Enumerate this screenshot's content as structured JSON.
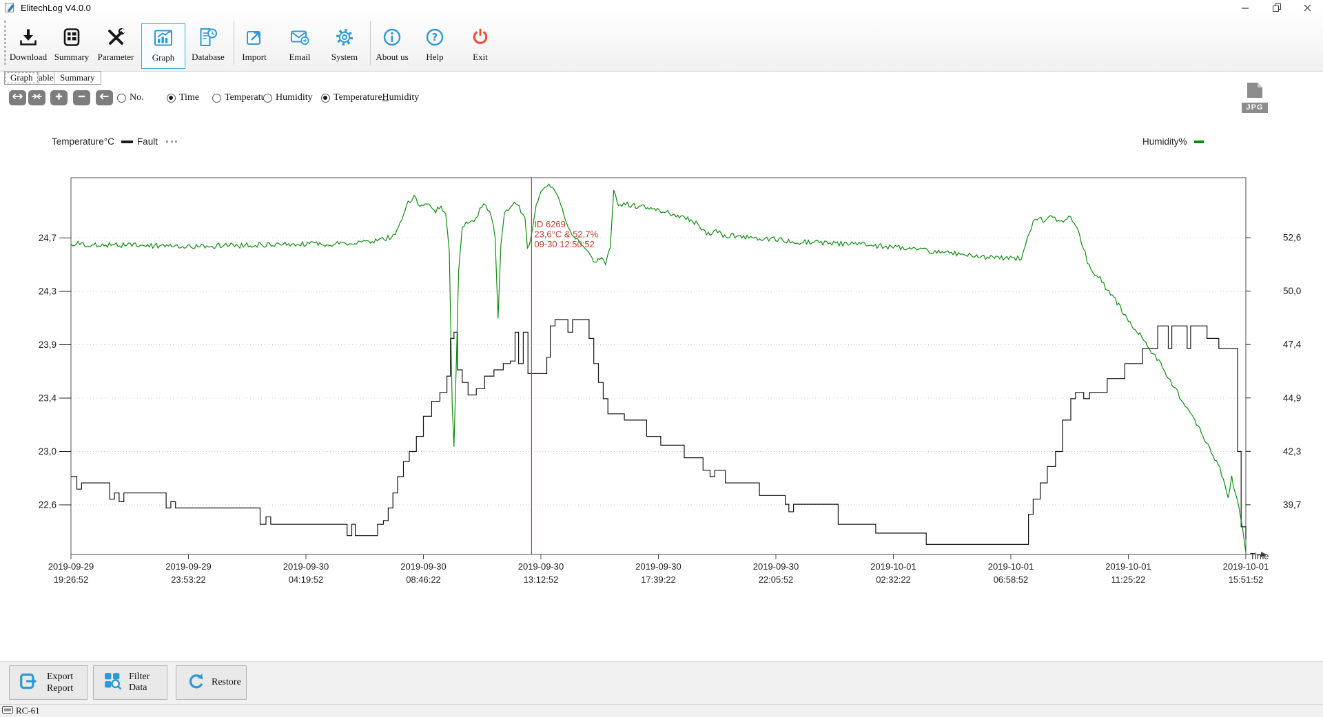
{
  "window": {
    "title": "ElitechLog V4.0.0"
  },
  "toolbar": {
    "items": [
      "Download",
      "Summary",
      "Parameter",
      "Graph",
      "Database",
      "Import",
      "Email",
      "System",
      "About us",
      "Help",
      "Exit"
    ],
    "active_item": "Graph"
  },
  "tabs": [
    {
      "label": "Graph",
      "active": true
    },
    {
      "label": "Table",
      "active": false
    },
    {
      "label": "Summary",
      "active": false
    }
  ],
  "graph_controls": {
    "zoom_buttons": [
      "expand-horizontal",
      "compress-horizontal",
      "zoom-in",
      "zoom-out",
      "pan-left"
    ],
    "radios": [
      {
        "label": "No.",
        "checked": false
      },
      {
        "label": "Time",
        "checked": true
      },
      {
        "label": "Temperatur",
        "checked": false
      },
      {
        "label": "Humidity",
        "checked": false
      },
      {
        "label_pre": "Temperature",
        "label_accel": "H",
        "label_post": "umidity",
        "checked": true
      }
    ],
    "export_jpg_label": "JPG"
  },
  "legend": {
    "left_axis_title": "Temperature°C",
    "fault_label": "Fault",
    "right_axis_title": "Humidity%"
  },
  "cursor": {
    "x_percent": 39.2,
    "lines": [
      "ID 6269",
      "23,6°C & 52,7%",
      "09-30 12:50:52"
    ],
    "color": "#c0392b"
  },
  "footer": {
    "buttons": [
      "Export Report",
      "Filter Data",
      "Restore"
    ]
  },
  "statusbar": {
    "device": "RC-61"
  },
  "chart_data": {
    "type": "line",
    "title": "",
    "grid": "horizontal-dotted",
    "x_axis": {
      "label": "Time",
      "tick_labels": [
        [
          "2019-09-29",
          "19:26:52"
        ],
        [
          "2019-09-29",
          "23:53:22"
        ],
        [
          "2019-09-30",
          "04:19:52"
        ],
        [
          "2019-09-30",
          "08:46:22"
        ],
        [
          "2019-09-30",
          "13:12:52"
        ],
        [
          "2019-09-30",
          "17:39:22"
        ],
        [
          "2019-09-30",
          "22:05:52"
        ],
        [
          "2019-10-01",
          "02:32:22"
        ],
        [
          "2019-10-01",
          "06:58:52"
        ],
        [
          "2019-10-01",
          "11:25:22"
        ],
        [
          "2019-10-01",
          "15:51:52"
        ]
      ]
    },
    "y_left": {
      "title": "Temperature°C",
      "min": 22.18,
      "max": 25.18,
      "ticks": [
        {
          "v": 24.7,
          "t": "24,7"
        },
        {
          "v": 24.275,
          "t": "24,3"
        },
        {
          "v": 23.85,
          "t": "23,9"
        },
        {
          "v": 23.425,
          "t": "23,4"
        },
        {
          "v": 23.0,
          "t": "23,0"
        },
        {
          "v": 22.575,
          "t": "22,6"
        }
      ]
    },
    "y_right": {
      "title": "Humidity%",
      "min": 37.3,
      "max": 55.5,
      "ticks": [
        {
          "v": 52.6,
          "t": "52,6"
        },
        {
          "v": 50.02,
          "t": "50,0"
        },
        {
          "v": 47.44,
          "t": "47,4"
        },
        {
          "v": 44.86,
          "t": "44,9"
        },
        {
          "v": 42.28,
          "t": "42,3"
        },
        {
          "v": 39.7,
          "t": "39,7"
        }
      ]
    },
    "series": [
      {
        "name": "Temperature",
        "axis": "left",
        "style": "step",
        "color": "#141414",
        "points": [
          [
            0,
            22.8
          ],
          [
            0.5,
            22.7
          ],
          [
            0.9,
            22.75
          ],
          [
            3.1,
            22.75
          ],
          [
            3.3,
            22.62
          ],
          [
            3.7,
            22.67
          ],
          [
            4.1,
            22.6
          ],
          [
            4.5,
            22.67
          ],
          [
            7.9,
            22.67
          ],
          [
            8.1,
            22.55
          ],
          [
            8.5,
            22.6
          ],
          [
            8.9,
            22.55
          ],
          [
            15.8,
            22.55
          ],
          [
            16.1,
            22.42
          ],
          [
            16.6,
            22.48
          ],
          [
            17.0,
            22.42
          ],
          [
            23.2,
            22.42
          ],
          [
            23.5,
            22.33
          ],
          [
            23.9,
            22.42
          ],
          [
            24.2,
            22.33
          ],
          [
            25.8,
            22.33
          ],
          [
            26.1,
            22.42
          ],
          [
            26.6,
            22.45
          ],
          [
            27.0,
            22.55
          ],
          [
            27.4,
            22.67
          ],
          [
            27.8,
            22.8
          ],
          [
            28.3,
            22.92
          ],
          [
            28.8,
            23.0
          ],
          [
            29.4,
            23.12
          ],
          [
            30.0,
            23.28
          ],
          [
            30.7,
            23.4
          ],
          [
            31.4,
            23.47
          ],
          [
            32.0,
            23.6
          ],
          [
            32.3,
            23.9
          ],
          [
            32.6,
            23.95
          ],
          [
            32.9,
            23.65
          ],
          [
            33.3,
            23.55
          ],
          [
            33.8,
            23.45
          ],
          [
            34.5,
            23.5
          ],
          [
            35.2,
            23.6
          ],
          [
            36.0,
            23.65
          ],
          [
            36.8,
            23.7
          ],
          [
            37.4,
            23.72
          ],
          [
            37.8,
            23.95
          ],
          [
            38.1,
            23.7
          ],
          [
            38.5,
            23.95
          ],
          [
            38.9,
            23.62
          ],
          [
            40.1,
            23.62
          ],
          [
            40.5,
            23.75
          ],
          [
            40.8,
            24.0
          ],
          [
            41.2,
            24.05
          ],
          [
            42.3,
            23.95
          ],
          [
            42.7,
            24.05
          ],
          [
            43.8,
            24.05
          ],
          [
            44.1,
            23.9
          ],
          [
            44.5,
            23.7
          ],
          [
            44.9,
            23.55
          ],
          [
            45.3,
            23.42
          ],
          [
            45.7,
            23.3
          ],
          [
            46.9,
            23.3
          ],
          [
            47.1,
            23.25
          ],
          [
            48.2,
            23.25
          ],
          [
            49.0,
            23.12
          ],
          [
            50.2,
            23.05
          ],
          [
            52.2,
            22.95
          ],
          [
            53.8,
            22.85
          ],
          [
            54.4,
            22.8
          ],
          [
            54.8,
            22.85
          ],
          [
            55.7,
            22.75
          ],
          [
            58.6,
            22.65
          ],
          [
            60.8,
            22.58
          ],
          [
            61.1,
            22.52
          ],
          [
            61.5,
            22.58
          ],
          [
            65.0,
            22.58
          ],
          [
            65.3,
            22.42
          ],
          [
            68.2,
            22.42
          ],
          [
            68.5,
            22.35
          ],
          [
            72.5,
            22.35
          ],
          [
            72.8,
            22.26
          ],
          [
            81.2,
            22.26
          ],
          [
            81.5,
            22.5
          ],
          [
            81.9,
            22.62
          ],
          [
            82.5,
            22.75
          ],
          [
            83.1,
            22.88
          ],
          [
            83.8,
            23.0
          ],
          [
            84.4,
            23.25
          ],
          [
            85.1,
            23.42
          ],
          [
            85.5,
            23.47
          ],
          [
            86.2,
            23.42
          ],
          [
            86.7,
            23.47
          ],
          [
            87.8,
            23.47
          ],
          [
            88.2,
            23.58
          ],
          [
            89.4,
            23.58
          ],
          [
            89.7,
            23.7
          ],
          [
            90.9,
            23.7
          ],
          [
            91.2,
            23.82
          ],
          [
            92.2,
            23.82
          ],
          [
            92.5,
            24.0
          ],
          [
            93.2,
            24.0
          ],
          [
            93.4,
            23.82
          ],
          [
            93.7,
            24.0
          ],
          [
            94.7,
            24.0
          ],
          [
            95.0,
            23.82
          ],
          [
            95.3,
            24.0
          ],
          [
            96.4,
            24.0
          ],
          [
            96.7,
            23.9
          ],
          [
            97.4,
            23.9
          ],
          [
            97.7,
            23.82
          ],
          [
            99.1,
            23.82
          ],
          [
            99.3,
            23.0
          ],
          [
            99.6,
            22.4
          ],
          [
            100,
            22.3
          ]
        ]
      },
      {
        "name": "Humidity",
        "axis": "right",
        "style": "line",
        "noise": 0.13,
        "color": "#0e8c0e",
        "points": [
          [
            0,
            52.3
          ],
          [
            4,
            52.25
          ],
          [
            8,
            52.2
          ],
          [
            12,
            52.2
          ],
          [
            16,
            52.25
          ],
          [
            20,
            52.3
          ],
          [
            24,
            52.3
          ],
          [
            25.5,
            52.4
          ],
          [
            26.5,
            52.5
          ],
          [
            27.6,
            52.7
          ],
          [
            28.3,
            53.6
          ],
          [
            28.7,
            54.3
          ],
          [
            29.2,
            54.6
          ],
          [
            29.7,
            54.1
          ],
          [
            30.3,
            54.3
          ],
          [
            30.9,
            53.9
          ],
          [
            31.5,
            54.0
          ],
          [
            31.9,
            53.8
          ],
          [
            32.2,
            52.0
          ],
          [
            32.45,
            44.5
          ],
          [
            32.6,
            42.5
          ],
          [
            32.8,
            46.5
          ],
          [
            33.0,
            51.0
          ],
          [
            33.3,
            53.1
          ],
          [
            33.8,
            53.4
          ],
          [
            34.3,
            53.3
          ],
          [
            34.8,
            54.0
          ],
          [
            35.3,
            54.2
          ],
          [
            35.8,
            53.6
          ],
          [
            36.1,
            52.6
          ],
          [
            36.35,
            48.7
          ],
          [
            36.6,
            52.3
          ],
          [
            36.9,
            53.8
          ],
          [
            37.4,
            54.1
          ],
          [
            37.9,
            54.3
          ],
          [
            38.3,
            53.9
          ],
          [
            38.65,
            53.6
          ],
          [
            38.85,
            52.1
          ],
          [
            39.2,
            52.7
          ],
          [
            39.6,
            54.2
          ],
          [
            40.0,
            54.8
          ],
          [
            40.5,
            55.05
          ],
          [
            41.0,
            55.1
          ],
          [
            41.5,
            54.5
          ],
          [
            42.0,
            53.6
          ],
          [
            42.5,
            52.9
          ],
          [
            43.1,
            52.5
          ],
          [
            43.7,
            52.2
          ],
          [
            44.2,
            51.7
          ],
          [
            44.6,
            51.3
          ],
          [
            45.0,
            51.6
          ],
          [
            45.5,
            51.4
          ],
          [
            45.9,
            52.2
          ],
          [
            46.2,
            54.9
          ],
          [
            46.6,
            54.2
          ],
          [
            47.5,
            54.2
          ],
          [
            48.5,
            54.1
          ],
          [
            49.5,
            54.0
          ],
          [
            50.5,
            53.9
          ],
          [
            51.5,
            53.7
          ],
          [
            52.5,
            53.5
          ],
          [
            53.2,
            53.3
          ],
          [
            53.8,
            53.0
          ],
          [
            54.4,
            52.7
          ],
          [
            54.9,
            52.9
          ],
          [
            55.5,
            52.7
          ],
          [
            56.5,
            52.7
          ],
          [
            58,
            52.6
          ],
          [
            60,
            52.5
          ],
          [
            62,
            52.4
          ],
          [
            64,
            52.35
          ],
          [
            66,
            52.3
          ],
          [
            68,
            52.25
          ],
          [
            70,
            52.15
          ],
          [
            72,
            52.05
          ],
          [
            74,
            51.9
          ],
          [
            76,
            51.8
          ],
          [
            78,
            51.65
          ],
          [
            79.5,
            51.6
          ],
          [
            80.9,
            51.6
          ],
          [
            81.4,
            52.6
          ],
          [
            81.9,
            53.3
          ],
          [
            82.4,
            53.6
          ],
          [
            82.9,
            53.3
          ],
          [
            83.4,
            53.7
          ],
          [
            83.9,
            53.5
          ],
          [
            84.6,
            53.4
          ],
          [
            85.1,
            53.6
          ],
          [
            85.5,
            53.2
          ],
          [
            86.0,
            52.4
          ],
          [
            86.5,
            51.5
          ],
          [
            87.0,
            51.0
          ],
          [
            87.6,
            50.6
          ],
          [
            88.2,
            50.1
          ],
          [
            88.9,
            49.6
          ],
          [
            89.6,
            49.0
          ],
          [
            90.3,
            48.4
          ],
          [
            91.0,
            47.9
          ],
          [
            91.8,
            47.2
          ],
          [
            92.6,
            46.6
          ],
          [
            93.4,
            45.9
          ],
          [
            94.2,
            45.1
          ],
          [
            95.0,
            44.4
          ],
          [
            95.8,
            43.6
          ],
          [
            96.5,
            42.9
          ],
          [
            97.2,
            42.1
          ],
          [
            97.8,
            41.4
          ],
          [
            98.2,
            40.8
          ],
          [
            98.5,
            40.0
          ],
          [
            98.8,
            41.0
          ],
          [
            99.1,
            40.3
          ],
          [
            99.4,
            39.6
          ],
          [
            99.7,
            38.6
          ],
          [
            100,
            37.4
          ]
        ]
      }
    ]
  }
}
